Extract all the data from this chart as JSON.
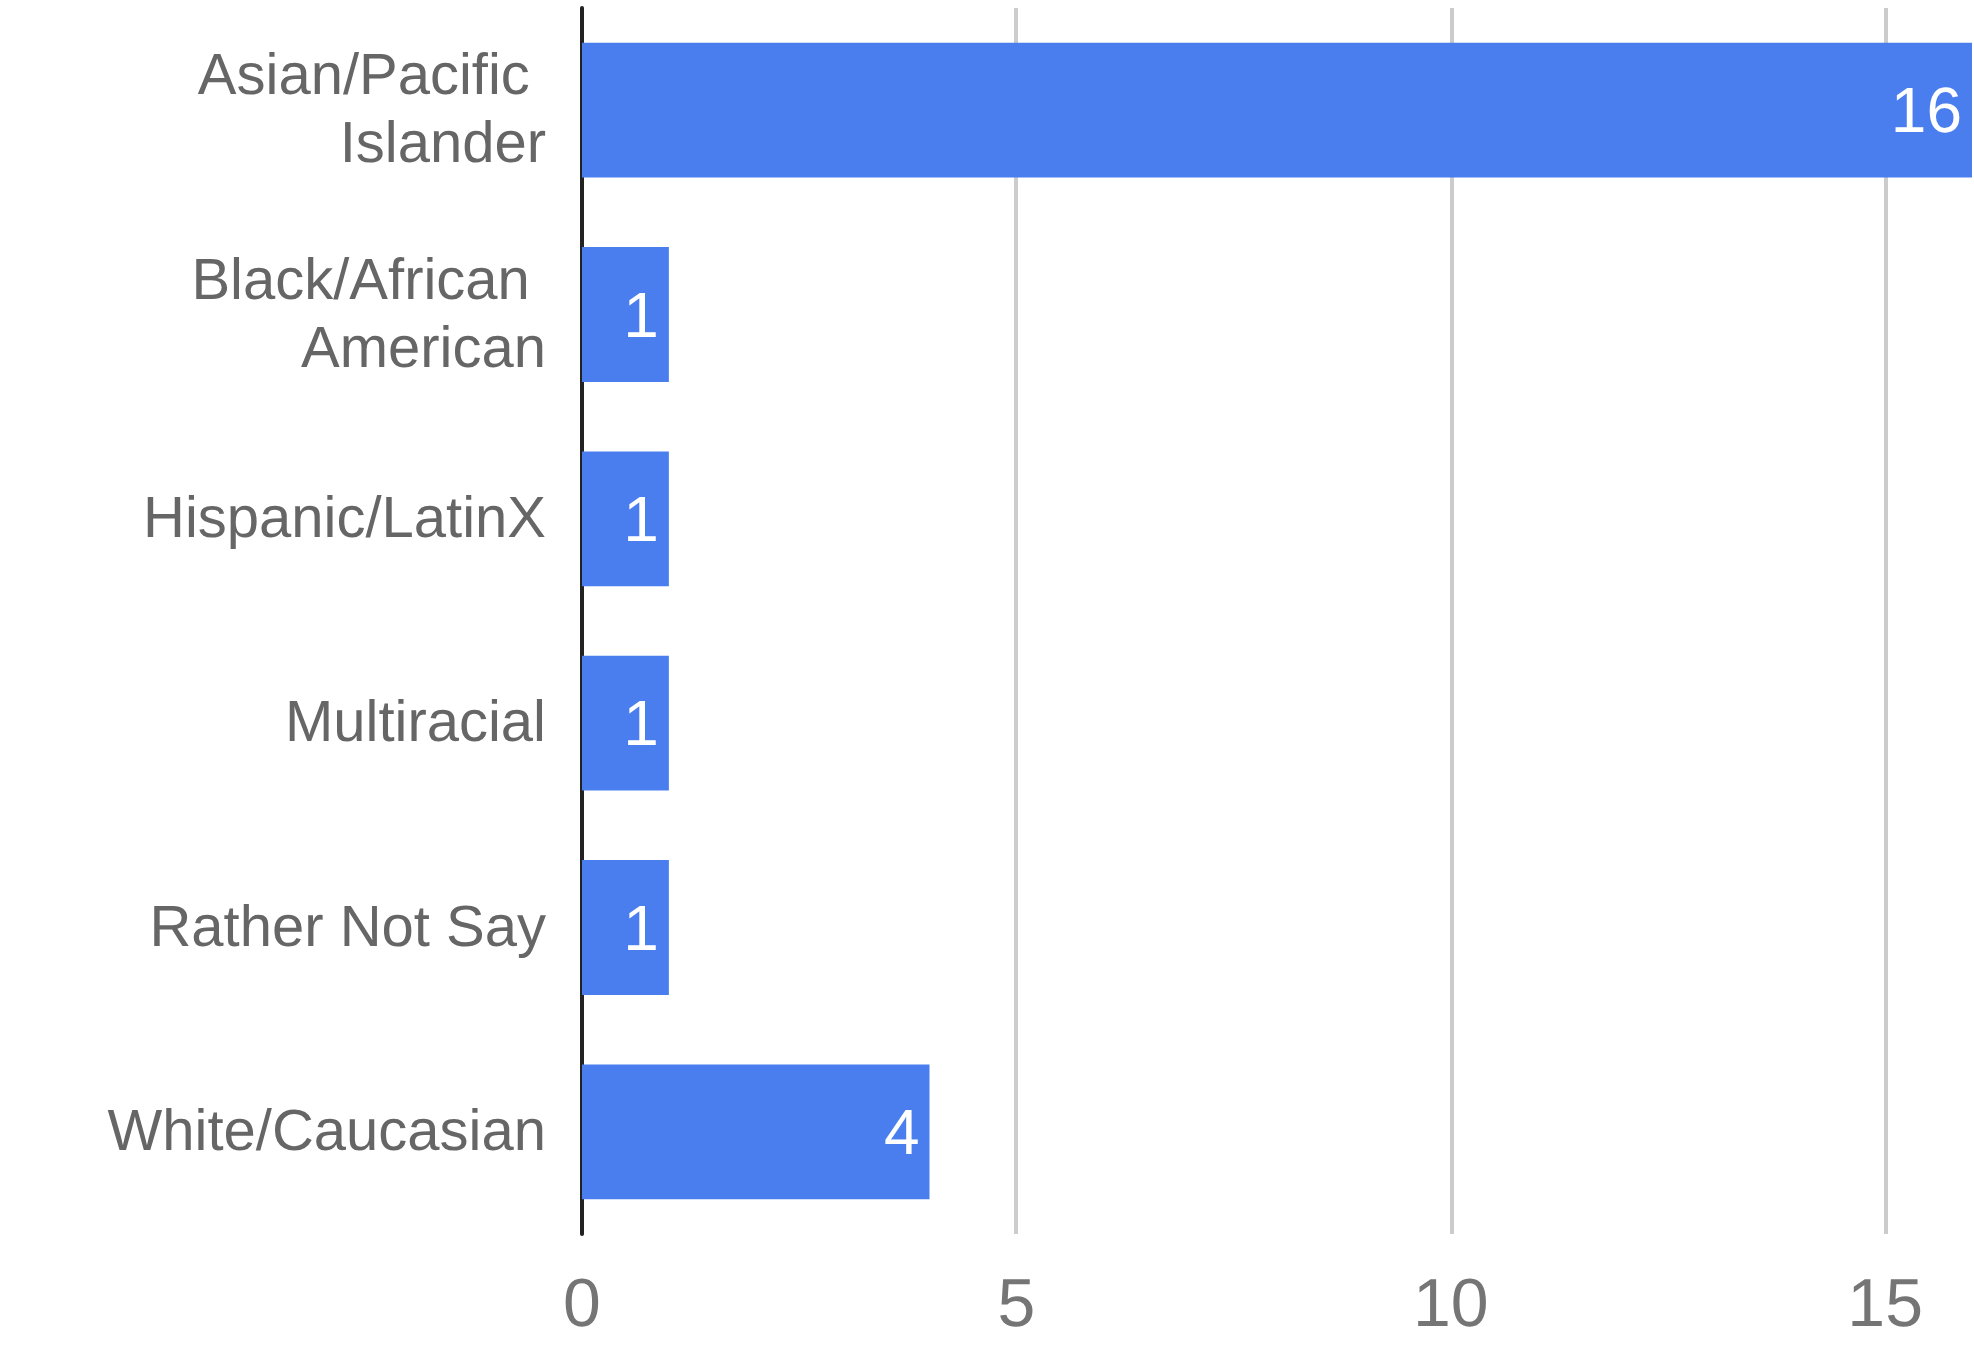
{
  "chart_data": {
    "type": "bar",
    "orientation": "horizontal",
    "categories": [
      "Asian/Pacific Islander",
      "Black/African American",
      "Hispanic/LatinX",
      "Multiracial",
      "Rather Not Say",
      "White/Caucasian"
    ],
    "values": [
      16,
      1,
      1,
      1,
      1,
      4
    ],
    "color": "#4a7eef",
    "xlim": [
      0,
      16
    ],
    "xticks": [
      0,
      5,
      10,
      15
    ],
    "grid": "x",
    "data_labels": true
  }
}
